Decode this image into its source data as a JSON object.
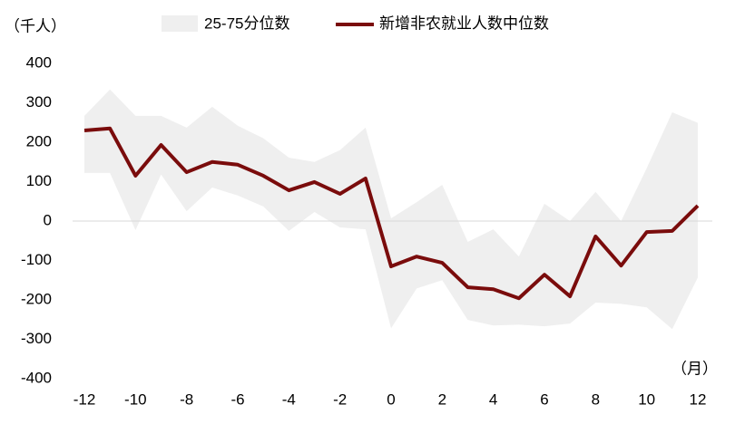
{
  "chart_data": {
    "type": "line",
    "y_unit": "（千人）",
    "x_unit": "（月）",
    "x": [
      -12,
      -11,
      -10,
      -9,
      -8,
      -7,
      -6,
      -5,
      -4,
      -3,
      -2,
      -1,
      0,
      1,
      2,
      3,
      4,
      5,
      6,
      7,
      8,
      9,
      10,
      11,
      12
    ],
    "xlim": [
      -12,
      12
    ],
    "xticks": [
      -12,
      -10,
      -8,
      -6,
      -4,
      -2,
      0,
      2,
      4,
      6,
      8,
      10,
      12
    ],
    "ylim": [
      -400,
      400
    ],
    "yticks": [
      -400,
      -300,
      -200,
      -100,
      0,
      100,
      200,
      300,
      400
    ],
    "band": {
      "name": "25-75分位数",
      "color": "#efefef",
      "upper": [
        267,
        334,
        267,
        267,
        237,
        290,
        242,
        210,
        161,
        150,
        180,
        237,
        7,
        48,
        92,
        -53,
        -21,
        -90,
        44,
        0,
        74,
        0,
        134,
        276,
        249
      ],
      "lower": [
        122,
        122,
        -23,
        118,
        25,
        85,
        65,
        37,
        -25,
        23,
        -16,
        -21,
        -272,
        -171,
        -150,
        -251,
        -265,
        -263,
        -267,
        -260,
        -207,
        -210,
        -219,
        -274,
        -143
      ]
    },
    "series": [
      {
        "name": "新增非农就业人数中位数",
        "color": "#7a0c0c",
        "values": [
          230,
          235,
          115,
          193,
          124,
          150,
          143,
          115,
          78,
          99,
          69,
          108,
          -115,
          -90,
          -106,
          -168,
          -173,
          -196,
          -136,
          -191,
          -39,
          -113,
          -28,
          -25,
          39
        ]
      }
    ],
    "zero_line_color": "#d9d9d9"
  }
}
